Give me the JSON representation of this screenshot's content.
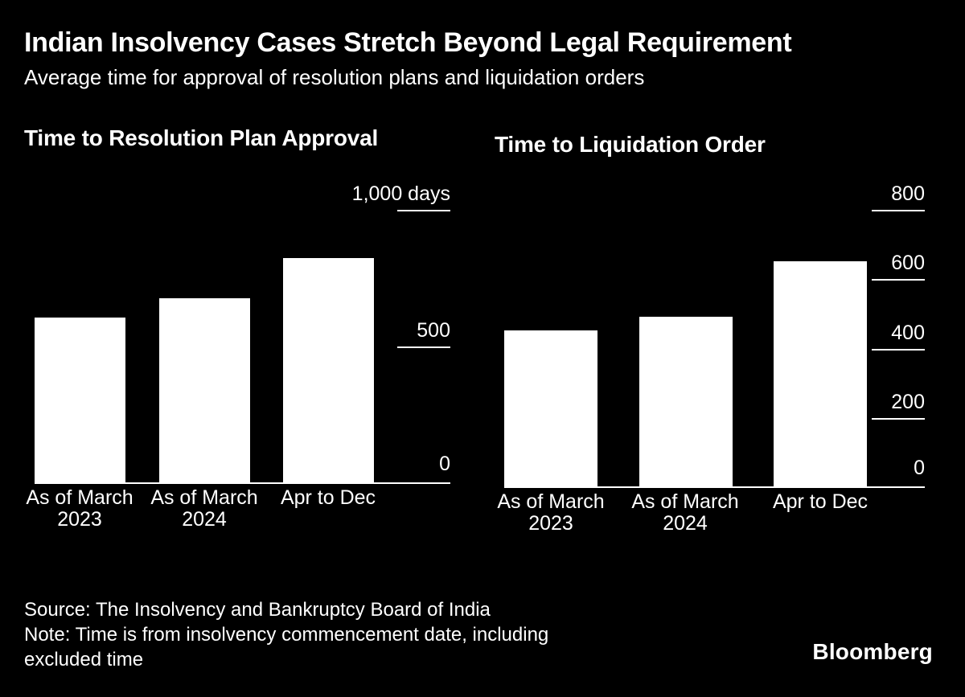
{
  "header": {
    "title": "Indian Insolvency Cases Stretch Beyond Legal Requirement",
    "subtitle": "Average time for approval of resolution plans and liquidation orders"
  },
  "colors": {
    "background": "#000000",
    "text": "#ffffff",
    "bar": "#ffffff",
    "axis": "#ffffff"
  },
  "chart_data": [
    {
      "type": "bar",
      "title": "Time to Resolution Plan Approval",
      "unit": "days",
      "categories": [
        [
          "As of March",
          "2023"
        ],
        [
          "As of March",
          "2024"
        ],
        [
          "Apr to Dec"
        ]
      ],
      "values": [
        610,
        680,
        825
      ],
      "ylim": [
        0,
        1000
      ],
      "yticks": [
        {
          "value": 0,
          "label": "0"
        },
        {
          "value": 500,
          "label": "500"
        },
        {
          "value": 1000,
          "label": "1,000 days"
        }
      ],
      "grid": false,
      "legend": "none",
      "axis_side": "right",
      "bar_color": "#ffffff"
    },
    {
      "type": "bar",
      "title": "Time to Liquidation Order",
      "unit": "days",
      "categories": [
        [
          "As of March",
          "2023"
        ],
        [
          "As of March",
          "2024"
        ],
        [
          "Apr to Dec"
        ]
      ],
      "values": [
        455,
        495,
        655
      ],
      "ylim": [
        0,
        800
      ],
      "yticks": [
        {
          "value": 0,
          "label": "0"
        },
        {
          "value": 200,
          "label": "200"
        },
        {
          "value": 400,
          "label": "400"
        },
        {
          "value": 600,
          "label": "600"
        },
        {
          "value": 800,
          "label": "800"
        }
      ],
      "grid": false,
      "legend": "none",
      "axis_side": "right",
      "bar_color": "#ffffff"
    }
  ],
  "footer": {
    "source": "Source: The Insolvency and Bankruptcy Board of India",
    "note_lines": [
      "Note: Time is from insolvency commencement date, including",
      "excluded time"
    ],
    "brand": "Bloomberg"
  }
}
